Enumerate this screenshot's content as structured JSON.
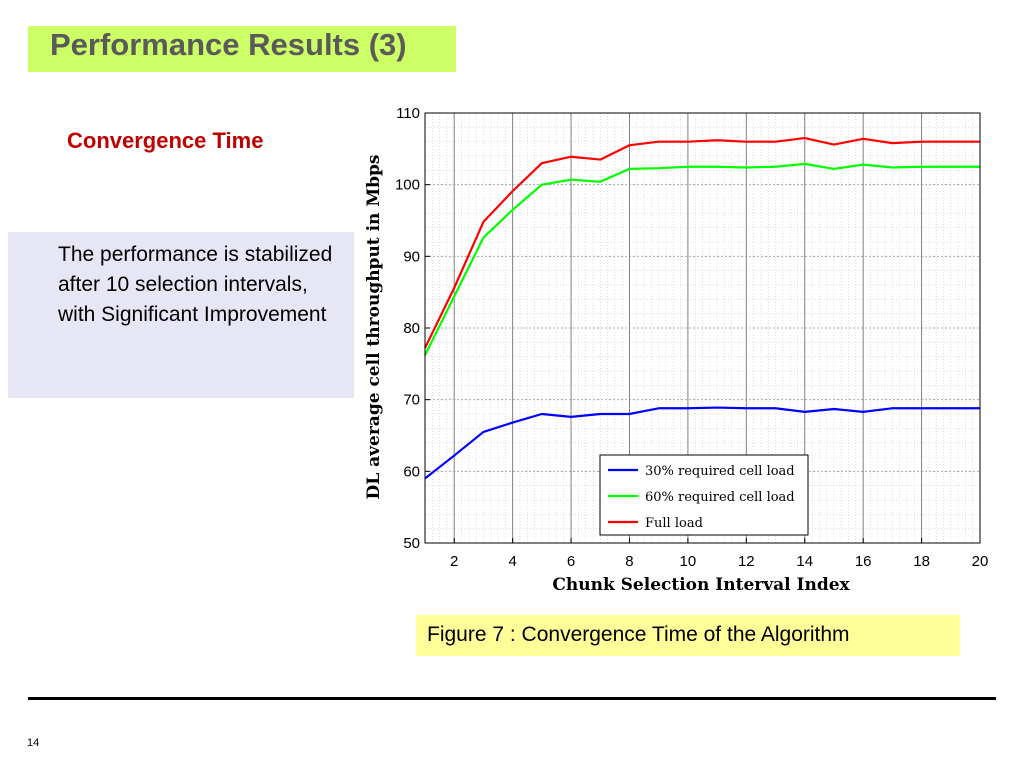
{
  "slide": {
    "title": "Performance Results (3)",
    "subtitle": "Convergence Time",
    "info_text": "The performance is stabilized after 10 selection intervals, with Significant Improvement",
    "caption": "Figure 7 : Convergence Time of  the Algorithm",
    "page_number": "14",
    "colors": {
      "title_bg": "#ccff66",
      "title_text": "#5a5a5a",
      "subtitle_text": "#c00000",
      "info_bg": "#e6e6f5",
      "caption_bg": "#ffff99"
    }
  },
  "chart_data": {
    "type": "line",
    "xlabel": "Chunk Selection Interval Index",
    "ylabel": "DL average cell throughput in Mbps",
    "xlim": [
      1,
      20
    ],
    "ylim": [
      50,
      110
    ],
    "xticks": [
      2,
      4,
      6,
      8,
      10,
      12,
      14,
      16,
      18,
      20
    ],
    "yticks": [
      50,
      60,
      70,
      80,
      90,
      100,
      110
    ],
    "grid": true,
    "legend_position": "bottom-right",
    "x": [
      1,
      2,
      3,
      4,
      5,
      6,
      7,
      8,
      9,
      10,
      11,
      12,
      13,
      14,
      15,
      16,
      17,
      18,
      19,
      20
    ],
    "series": [
      {
        "name": "30% required cell load",
        "color": "#0000ff",
        "values": [
          59,
          62.2,
          65.5,
          66.8,
          68,
          67.6,
          68,
          68,
          68.8,
          68.8,
          68.9,
          68.8,
          68.8,
          68.3,
          68.7,
          68.3,
          68.8,
          68.8,
          68.8,
          68.8
        ]
      },
      {
        "name": "60% required cell load",
        "color": "#00ff00",
        "values": [
          76.2,
          84.4,
          92.6,
          96.5,
          100,
          100.7,
          100.4,
          102.2,
          102.3,
          102.5,
          102.5,
          102.4,
          102.5,
          102.9,
          102.2,
          102.8,
          102.4,
          102.5,
          102.5,
          102.5
        ]
      },
      {
        "name": "Full load",
        "color": "#ff0000",
        "values": [
          77.2,
          85.6,
          94.8,
          99.1,
          103,
          103.9,
          103.5,
          105.5,
          106,
          106,
          106.2,
          106,
          106,
          106.5,
          105.6,
          106.4,
          105.8,
          106,
          106,
          106
        ]
      }
    ]
  }
}
